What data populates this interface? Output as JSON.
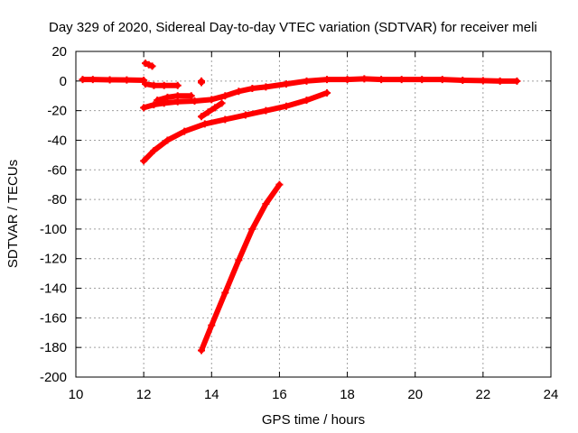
{
  "chart_data": {
    "type": "scatter",
    "title": "Day 329 of 2020, Sidereal Day-to-day VTEC variation (SDTVAR) for receiver meli",
    "xlabel": "GPS time / hours",
    "ylabel": "SDTVAR / TECUs",
    "xlim": [
      10,
      24
    ],
    "ylim": [
      -200,
      20
    ],
    "xticks": [
      "10",
      "12",
      "14",
      "16",
      "18",
      "20",
      "22",
      "24"
    ],
    "yticks": [
      "20",
      "0",
      "-20",
      "-40",
      "-60",
      "-80",
      "-100",
      "-120",
      "-140",
      "-160",
      "-180",
      "-200"
    ],
    "grid": true,
    "marker_color": "#ff0000",
    "series": [
      {
        "points": [
          [
            10.2,
            1
          ],
          [
            10.5,
            1
          ],
          [
            11.0,
            0.8
          ],
          [
            11.5,
            0.7
          ],
          [
            12.0,
            0.5
          ]
        ]
      },
      {
        "points": [
          [
            12.05,
            12
          ],
          [
            12.15,
            11
          ],
          [
            12.25,
            10
          ]
        ]
      },
      {
        "points": [
          [
            12.05,
            -2
          ],
          [
            12.3,
            -3
          ],
          [
            12.6,
            -3
          ],
          [
            13.0,
            -3
          ]
        ]
      },
      {
        "points": [
          [
            12.0,
            -18
          ],
          [
            12.3,
            -16
          ],
          [
            12.6,
            -15
          ],
          [
            13.0,
            -14
          ],
          [
            13.5,
            -13.5
          ],
          [
            14.0,
            -12.5
          ],
          [
            14.4,
            -10
          ],
          [
            14.8,
            -7
          ],
          [
            15.2,
            -5
          ],
          [
            15.6,
            -4
          ],
          [
            16.2,
            -2
          ],
          [
            16.8,
            0
          ],
          [
            17.4,
            1
          ],
          [
            18.0,
            1
          ],
          [
            18.5,
            1.5
          ],
          [
            19.0,
            1
          ],
          [
            19.6,
            1
          ],
          [
            20.2,
            1
          ],
          [
            20.8,
            1
          ],
          [
            21.4,
            0.5
          ],
          [
            22.0,
            0.3
          ],
          [
            22.5,
            0
          ],
          [
            23.0,
            0
          ]
        ]
      },
      {
        "points": [
          [
            12.4,
            -13
          ],
          [
            12.7,
            -11
          ],
          [
            13.0,
            -10
          ],
          [
            13.4,
            -10
          ]
        ]
      },
      {
        "points": [
          [
            13.7,
            -24
          ],
          [
            13.9,
            -21
          ],
          [
            14.1,
            -18
          ],
          [
            14.3,
            -15
          ]
        ]
      },
      {
        "points": [
          [
            13.7,
            -1
          ],
          [
            13.7,
            0
          ]
        ]
      },
      {
        "points": [
          [
            12.0,
            -54
          ],
          [
            12.3,
            -47
          ],
          [
            12.7,
            -40
          ],
          [
            13.2,
            -34
          ],
          [
            13.8,
            -29
          ],
          [
            14.4,
            -26
          ],
          [
            15.0,
            -23
          ],
          [
            15.6,
            -20
          ],
          [
            16.2,
            -17
          ],
          [
            16.8,
            -13
          ],
          [
            17.4,
            -8
          ]
        ]
      },
      {
        "points": [
          [
            13.7,
            -182
          ],
          [
            14.0,
            -165
          ],
          [
            14.4,
            -143
          ],
          [
            14.8,
            -121
          ],
          [
            15.2,
            -100
          ],
          [
            15.6,
            -83
          ],
          [
            16.0,
            -70
          ]
        ]
      }
    ]
  }
}
